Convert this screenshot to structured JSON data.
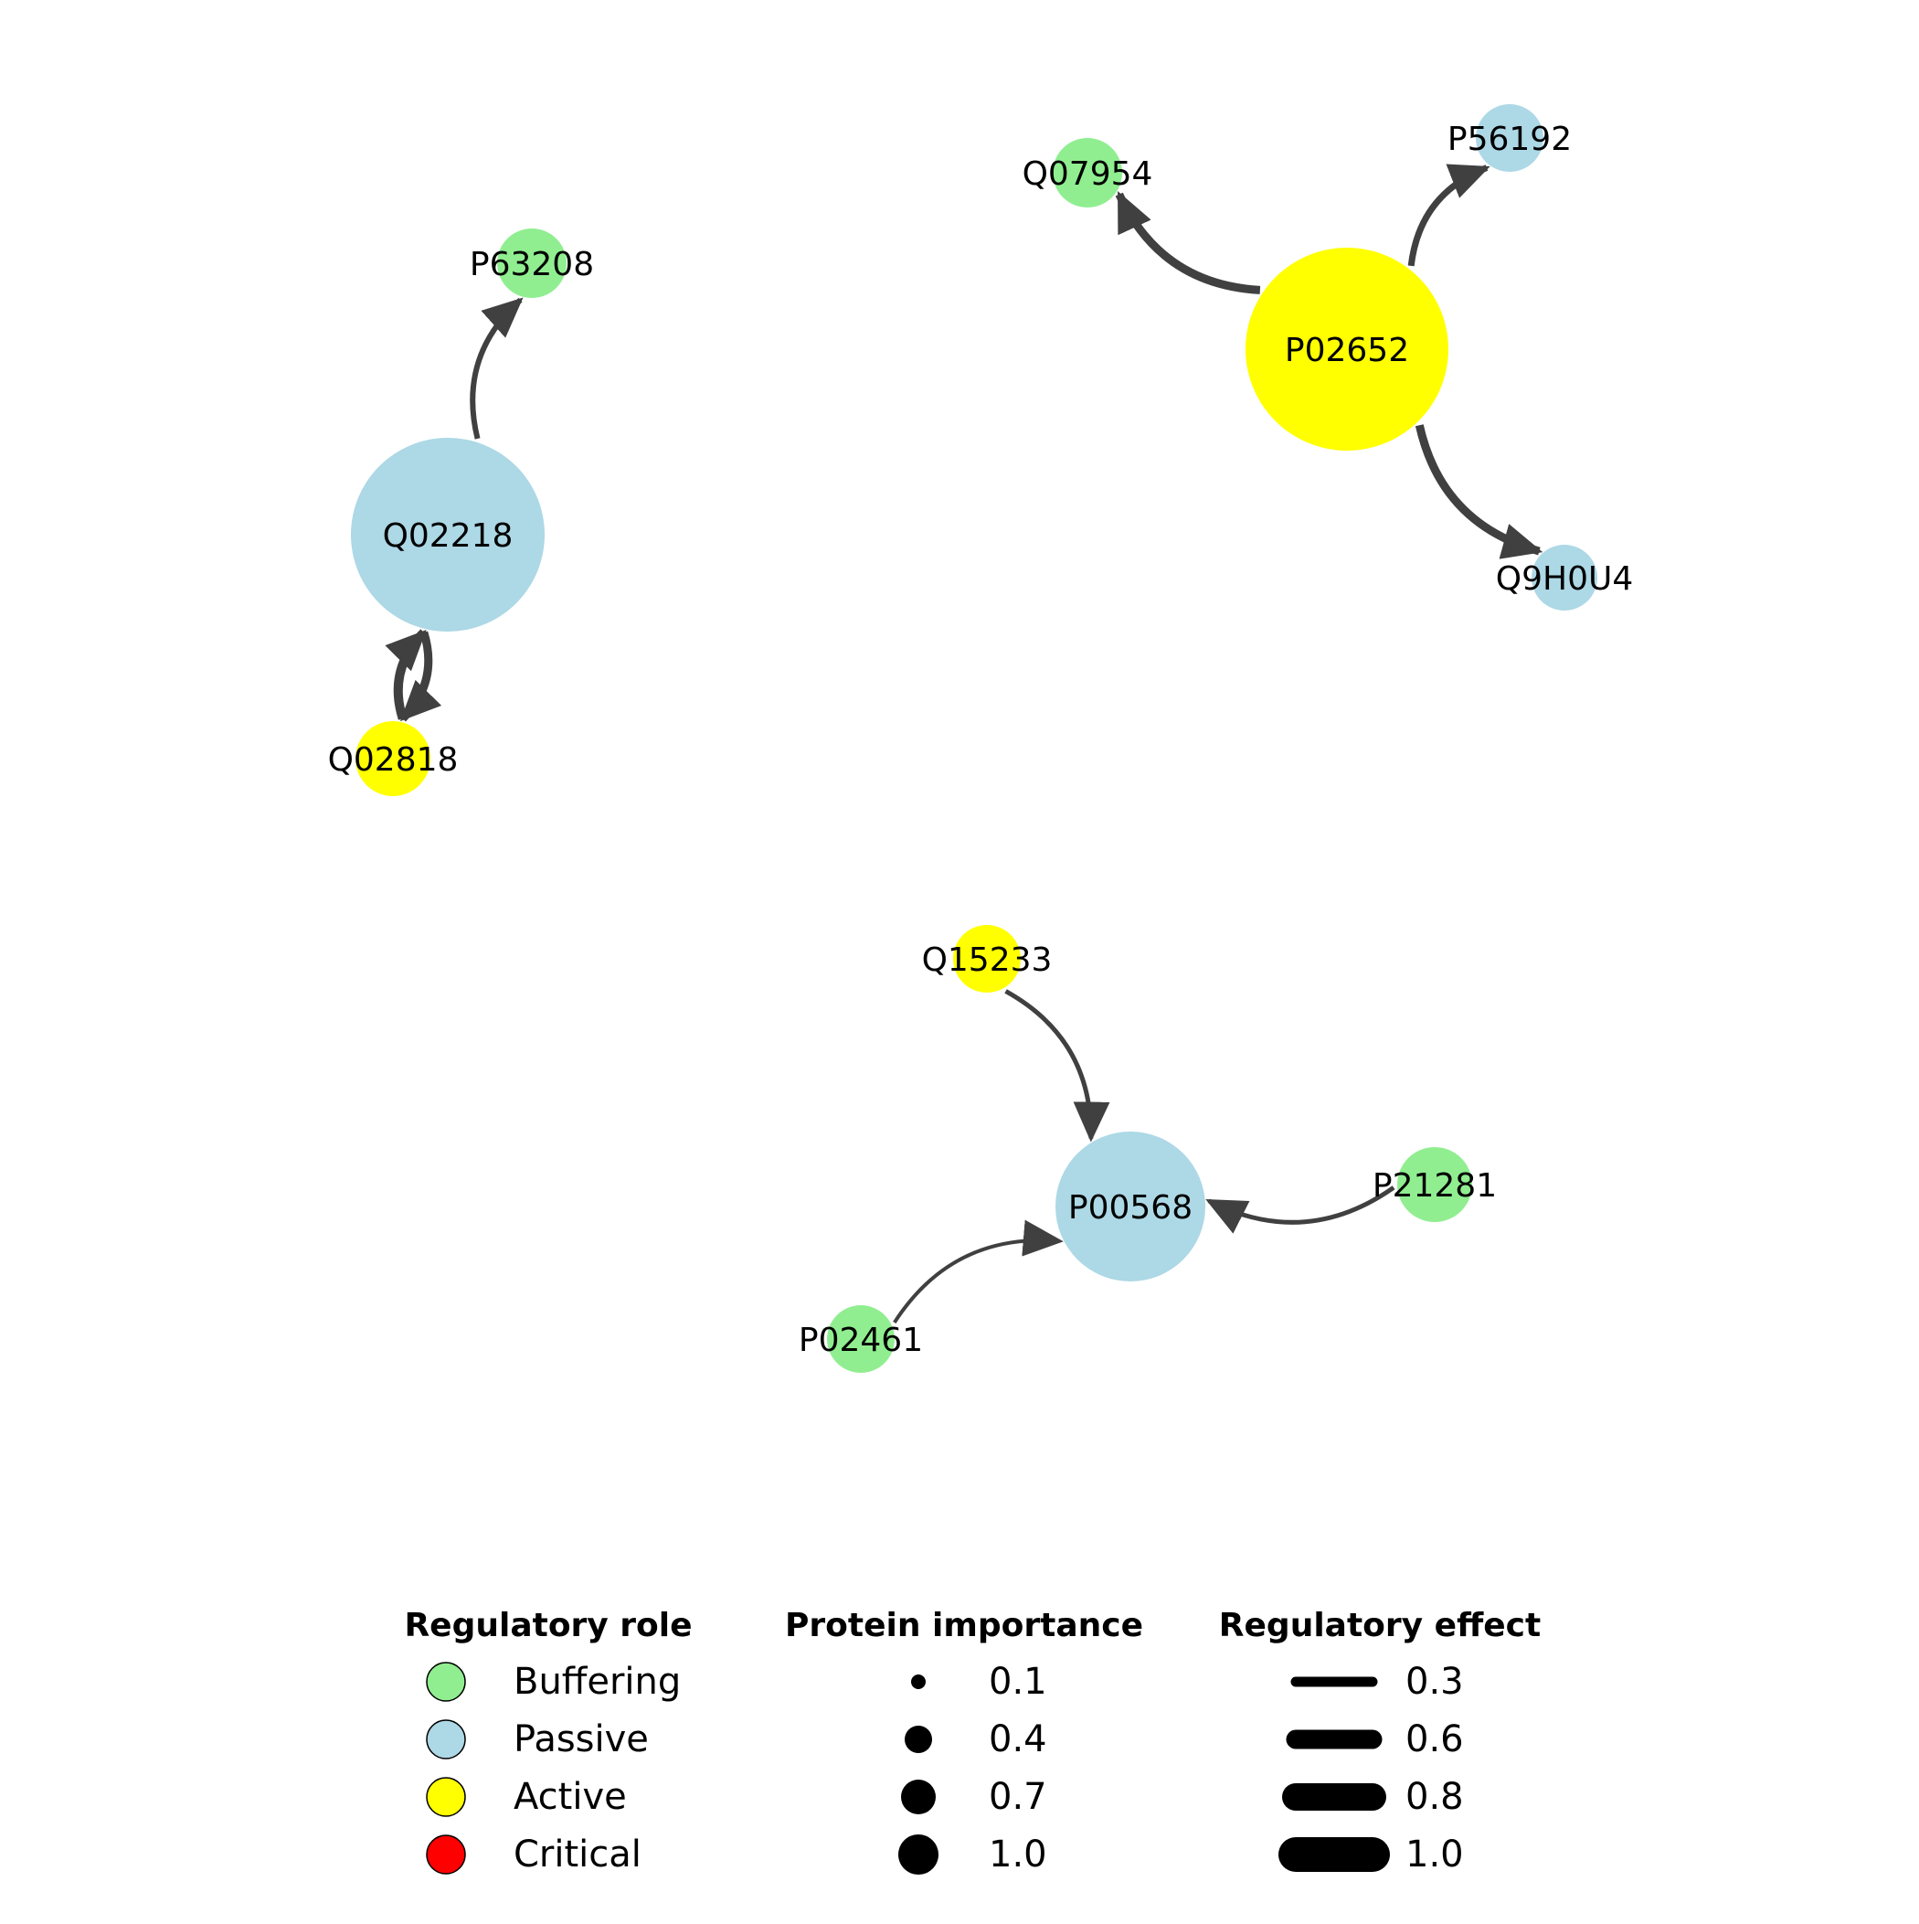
{
  "colors": {
    "Buffering": "#90ee90",
    "Passive": "#add8e6",
    "Active": "#ffff00",
    "Critical": "#ff0000",
    "edge": "#404040",
    "legend_stroke": "#000000"
  },
  "nodes": [
    {
      "id": "Q02218",
      "role": "Passive"
    },
    {
      "id": "P63208",
      "role": "Buffering"
    },
    {
      "id": "Q02818",
      "role": "Active"
    },
    {
      "id": "P02652",
      "role": "Active"
    },
    {
      "id": "Q07954",
      "role": "Buffering"
    },
    {
      "id": "P56192",
      "role": "Passive"
    },
    {
      "id": "Q9H0U4",
      "role": "Passive"
    },
    {
      "id": "P00568",
      "role": "Passive"
    },
    {
      "id": "Q15233",
      "role": "Active"
    },
    {
      "id": "P21281",
      "role": "Buffering"
    },
    {
      "id": "P02461",
      "role": "Buffering"
    }
  ],
  "edges": [
    {
      "source": "Q02218",
      "target": "P63208"
    },
    {
      "source": "Q02218",
      "target": "Q02818"
    },
    {
      "source": "Q02818",
      "target": "Q02218"
    },
    {
      "source": "P02652",
      "target": "Q07954"
    },
    {
      "source": "P02652",
      "target": "P56192"
    },
    {
      "source": "P02652",
      "target": "Q9H0U4"
    },
    {
      "source": "Q15233",
      "target": "P00568"
    },
    {
      "source": "P02461",
      "target": "P00568"
    },
    {
      "source": "P21281",
      "target": "P00568"
    }
  ],
  "legend": {
    "role": {
      "title": "Regulatory role",
      "items": [
        {
          "label": "Buffering",
          "color": "#90ee90"
        },
        {
          "label": "Passive",
          "color": "#add8e6"
        },
        {
          "label": "Active",
          "color": "#ffff00"
        },
        {
          "label": "Critical",
          "color": "#ff0000"
        }
      ]
    },
    "importance": {
      "title": "Protein importance",
      "items": [
        {
          "label": "0.1",
          "value": 0.1
        },
        {
          "label": "0.4",
          "value": 0.4
        },
        {
          "label": "0.7",
          "value": 0.7
        },
        {
          "label": "1.0",
          "value": 1.0
        }
      ]
    },
    "effect": {
      "title": "Regulatory effect",
      "items": [
        {
          "label": "0.3",
          "value": 0.3
        },
        {
          "label": "0.6",
          "value": 0.6
        },
        {
          "label": "0.8",
          "value": 0.8
        },
        {
          "label": "1.0",
          "value": 1.0
        }
      ]
    }
  }
}
